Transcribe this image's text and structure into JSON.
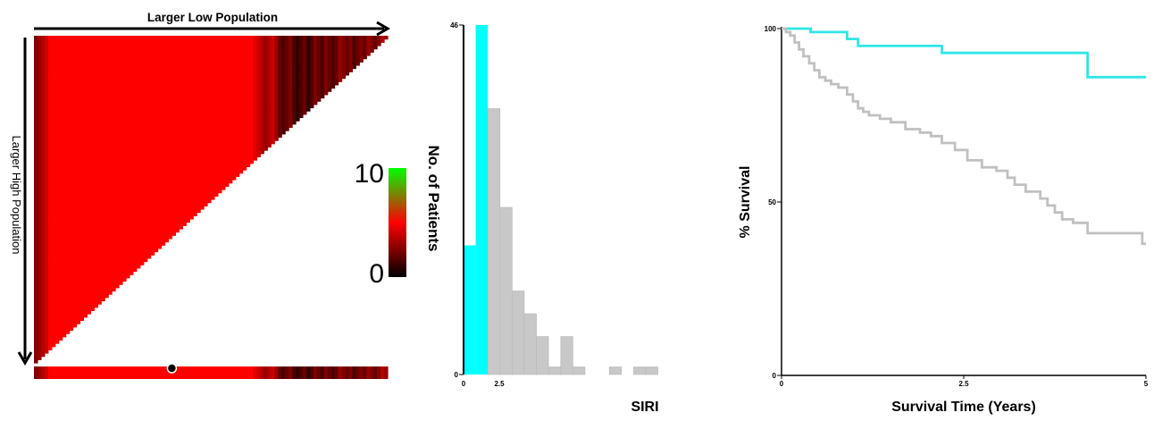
{
  "colors": {
    "heat_high": "#ff0000",
    "heat_low": "#000000",
    "legend_top": "#00ff00",
    "hist_low": "#00ffff",
    "hist_high": "#c8c8c8",
    "km_low": "#2ee6e6",
    "km_high": "#c0c0c0"
  },
  "panels": {
    "heatmap": {
      "top_label": "Larger Low Population",
      "left_label": "Larger High Population",
      "legend_max": "10",
      "legend_min": "0"
    },
    "histogram": {
      "ylabel": "No. of Patients",
      "xlabel": "SIRI"
    },
    "km": {
      "ylabel": "% Survival",
      "xlabel": "Survival Time (Years)"
    }
  },
  "chart_data": [
    {
      "type": "heatmap",
      "title": "",
      "xlabel": "Larger Low Population",
      "ylabel": "Larger High Population",
      "shape": "upper-triangle",
      "color_scale": {
        "min": 0,
        "max": 10,
        "colors": [
          "#000000",
          "#ff0000",
          "#00ff00"
        ]
      },
      "optimal_marker_position": 0.39,
      "row_summary_profile": [
        5,
        6,
        7,
        8,
        10,
        10,
        10,
        10,
        10,
        10,
        10,
        10,
        10,
        10,
        10,
        10,
        10,
        10,
        10,
        10,
        10,
        10,
        10,
        10,
        10,
        10,
        10,
        10,
        10,
        10,
        10,
        10,
        10,
        10,
        10,
        10,
        10,
        10,
        10,
        10,
        10,
        10,
        10,
        10,
        10,
        10,
        10,
        10,
        10,
        10,
        10,
        10,
        10,
        10,
        10,
        10,
        10,
        10,
        10,
        10,
        10,
        10,
        9,
        8,
        7,
        6,
        7,
        8,
        6,
        4,
        3,
        4,
        5,
        3,
        2,
        3,
        4,
        2,
        3,
        5,
        4,
        3,
        5,
        4,
        3,
        4,
        6,
        5,
        4,
        5,
        3,
        4,
        5,
        4,
        6,
        5,
        4,
        5,
        7,
        6
      ]
    },
    {
      "type": "bar",
      "title": "",
      "xlabel": "SIRI",
      "ylabel": "No. of Patients",
      "xlim": [
        0,
        10.5
      ],
      "ylim": [
        0,
        46
      ],
      "x_ticks": [
        0.0,
        2.5
      ],
      "y_ticks": [
        0,
        46
      ],
      "bin_width": 0.85,
      "series": [
        {
          "bins": [
            {
              "x0": 0.0,
              "value": 17
            },
            {
              "x0": 0.85,
              "value": 46
            }
          ]
        },
        {
          "bins": [
            {
              "x0": 1.7,
              "value": 35
            },
            {
              "x0": 2.55,
              "value": 22
            },
            {
              "x0": 3.4,
              "value": 11
            },
            {
              "x0": 4.25,
              "value": 8
            },
            {
              "x0": 5.1,
              "value": 5
            },
            {
              "x0": 5.95,
              "value": 1
            },
            {
              "x0": 6.8,
              "value": 5
            },
            {
              "x0": 7.65,
              "value": 1
            },
            {
              "x0": 8.5,
              "value": 0
            },
            {
              "x0": 9.35,
              "value": 0
            },
            {
              "x0": 10.2,
              "value": 1
            },
            {
              "x0": 11.05,
              "value": 0
            },
            {
              "x0": 11.9,
              "value": 1
            },
            {
              "x0": 12.75,
              "value": 1
            }
          ]
        }
      ]
    },
    {
      "type": "line",
      "step": true,
      "title": "",
      "xlabel": "Survival Time (Years)",
      "ylabel": "% Survival",
      "xlim": [
        0,
        5
      ],
      "ylim": [
        0,
        100
      ],
      "x_ticks": [
        0.0,
        2.5,
        5.0
      ],
      "y_ticks": [
        0,
        50,
        100
      ],
      "series": [
        {
          "x": [
            0,
            0.4,
            0.9,
            1.05,
            2.2,
            4.2,
            5.0
          ],
          "y": [
            100,
            99,
            97,
            95,
            93,
            86,
            86
          ]
        },
        {
          "x": [
            0,
            0.06,
            0.12,
            0.18,
            0.24,
            0.3,
            0.38,
            0.45,
            0.52,
            0.6,
            0.68,
            0.78,
            0.9,
            0.98,
            1.05,
            1.12,
            1.2,
            1.35,
            1.5,
            1.7,
            1.9,
            2.05,
            2.2,
            2.38,
            2.55,
            2.75,
            2.95,
            3.1,
            3.2,
            3.35,
            3.55,
            3.65,
            3.75,
            3.85,
            4.0,
            4.2,
            4.6,
            4.95,
            5.0
          ],
          "y": [
            100,
            99,
            98,
            96,
            94,
            92,
            90,
            88,
            86,
            85,
            84,
            83,
            81,
            79,
            77,
            76,
            75,
            74,
            73,
            71,
            70,
            69,
            67,
            65,
            62,
            60,
            59,
            57,
            55,
            53,
            51,
            49,
            47,
            45,
            44,
            41,
            41,
            38,
            38
          ]
        }
      ]
    }
  ]
}
